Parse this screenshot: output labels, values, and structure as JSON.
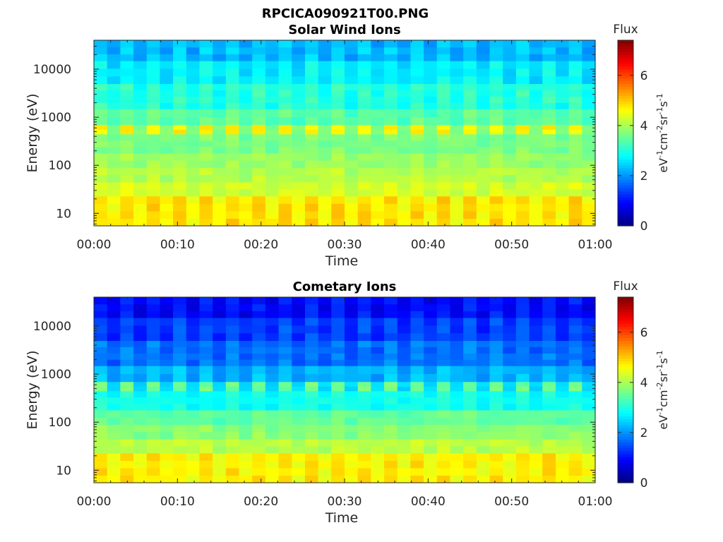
{
  "figure_title": "RPCICA090921T00.PNG",
  "chart_data": [
    {
      "type": "heatmap",
      "title": "Solar Wind Ions",
      "xlabel": "Time",
      "ylabel": "Energy (eV)",
      "x_ticks": [
        "00:00",
        "00:10",
        "00:20",
        "00:30",
        "00:40",
        "00:50",
        "01:00"
      ],
      "x_range_minutes": [
        0,
        60
      ],
      "y_scale": "log",
      "y_ticks": [
        "10",
        "100",
        "1000",
        "10000"
      ],
      "y_range": [
        5.5,
        40000
      ],
      "num_time_bins": 19,
      "scan_pattern": "alternating sweeps, 19 scans",
      "energy_bands": [
        {
          "e_min": 5.5,
          "e_max": 23,
          "flux_base": 4.95,
          "flux_alt": 4.6
        },
        {
          "e_min": 23,
          "e_max": 45,
          "flux_base": 4.4,
          "flux_alt": 4.25
        },
        {
          "e_min": 45,
          "e_max": 90,
          "flux_base": 4.15,
          "flux_alt": 4.0
        },
        {
          "e_min": 90,
          "e_max": 180,
          "flux_base": 3.95,
          "flux_alt": 3.8
        },
        {
          "e_min": 180,
          "e_max": 450,
          "flux_base": 3.75,
          "flux_alt": 3.6
        },
        {
          "e_min": 450,
          "e_max": 700,
          "flux_base": 4.7,
          "flux_alt": 3.7
        },
        {
          "e_min": 700,
          "e_max": 1500,
          "flux_base": 3.55,
          "flux_alt": 3.3
        },
        {
          "e_min": 1500,
          "e_max": 5000,
          "flux_base": 3.2,
          "flux_alt": 2.85
        },
        {
          "e_min": 5000,
          "e_max": 15000,
          "flux_base": 2.85,
          "flux_alt": 2.5
        },
        {
          "e_min": 15000,
          "e_max": 40000,
          "flux_base": 2.45,
          "flux_alt": 2.1
        }
      ],
      "colorbar": {
        "label": "Flux",
        "units_text": "eV-1cm-2sr-1s-1",
        "range": [
          0,
          7.4
        ],
        "ticks": [
          "0",
          "2",
          "4",
          "6"
        ],
        "colormap": "jet"
      }
    },
    {
      "type": "heatmap",
      "title": "Cometary Ions",
      "xlabel": "Time",
      "ylabel": "Energy (eV)",
      "x_ticks": [
        "00:00",
        "00:10",
        "00:20",
        "00:30",
        "00:40",
        "00:50",
        "01:00"
      ],
      "x_range_minutes": [
        0,
        60
      ],
      "y_scale": "log",
      "y_ticks": [
        "10",
        "100",
        "1000",
        "10000"
      ],
      "y_range": [
        5.5,
        40000
      ],
      "num_time_bins": 19,
      "scan_pattern": "alternating sweeps, 19 scans",
      "energy_bands": [
        {
          "e_min": 5.5,
          "e_max": 23,
          "flux_base": 4.85,
          "flux_alt": 4.55
        },
        {
          "e_min": 23,
          "e_max": 45,
          "flux_base": 4.2,
          "flux_alt": 4.05
        },
        {
          "e_min": 45,
          "e_max": 90,
          "flux_base": 3.85,
          "flux_alt": 3.7
        },
        {
          "e_min": 90,
          "e_max": 180,
          "flux_base": 3.55,
          "flux_alt": 3.4
        },
        {
          "e_min": 180,
          "e_max": 450,
          "flux_base": 3.0,
          "flux_alt": 2.8
        },
        {
          "e_min": 450,
          "e_max": 700,
          "flux_base": 3.6,
          "flux_alt": 2.5
        },
        {
          "e_min": 700,
          "e_max": 1500,
          "flux_base": 2.35,
          "flux_alt": 2.1
        },
        {
          "e_min": 1500,
          "e_max": 5000,
          "flux_base": 1.9,
          "flux_alt": 1.6
        },
        {
          "e_min": 5000,
          "e_max": 15000,
          "flux_base": 1.55,
          "flux_alt": 1.2
        },
        {
          "e_min": 15000,
          "e_max": 40000,
          "flux_base": 1.15,
          "flux_alt": 0.8
        }
      ],
      "colorbar": {
        "label": "Flux",
        "units_text": "eV-1cm-2sr-1s-1",
        "range": [
          0,
          7.4
        ],
        "ticks": [
          "0",
          "2",
          "4",
          "6"
        ],
        "colormap": "jet"
      }
    }
  ]
}
